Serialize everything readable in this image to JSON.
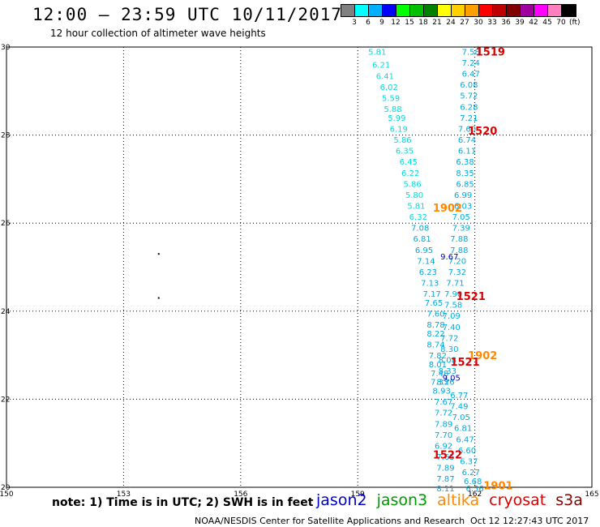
{
  "title": "12:00 — 23:59 UTC 10/11/2017",
  "subtitle": "12 hour collection of altimeter wave heights",
  "legend": {
    "unit": "(ft)",
    "labels": [
      "3",
      "6",
      "9",
      "12",
      "15",
      "18",
      "21",
      "24",
      "27",
      "30",
      "33",
      "36",
      "39",
      "42",
      "45",
      "70"
    ],
    "colors": [
      "#808080",
      "#00ffff",
      "#00b0ff",
      "#0000ff",
      "#00ff00",
      "#00c000",
      "#008000",
      "#ffff00",
      "#ffd000",
      "#ffa000",
      "#ff0000",
      "#c00000",
      "#800000",
      "#a000a0",
      "#ff00ff",
      "#ff80c0",
      "#000000"
    ]
  },
  "note": "note:  1) Time is in UTC;  2) SWH is in feet",
  "satellites": [
    {
      "name": "jason2",
      "color": "#0000cc"
    },
    {
      "name": "jason3",
      "color": "#009900"
    },
    {
      "name": "altika",
      "color": "#ff8800"
    },
    {
      "name": "cryosat",
      "color": "#dd0000"
    },
    {
      "name": "s3a",
      "color": "#880000"
    }
  ],
  "footer": {
    "org": "NOAA/NESDIS Center for Satellite Applications and Research",
    "timestamp": "Oct 12 12:27:43 UTC 2017"
  },
  "map": {
    "lon_range": [
      150,
      165
    ],
    "lat_range": [
      20,
      30
    ],
    "lon_ticks": [
      "150",
      "153",
      "156",
      "159",
      "162",
      "165"
    ],
    "lat_ticks": [
      "20",
      "22",
      "24",
      "26",
      "28",
      "30"
    ],
    "lat_tick_labels_shown": [
      "20",
      "22",
      "24",
      "26",
      "28",
      "30"
    ],
    "islands": [
      {
        "lon": 153.9,
        "lat": 25.3
      },
      {
        "lon": 153.9,
        "lat": 24.3
      }
    ],
    "tracks": [
      {
        "color": "#00dddd",
        "points": [
          {
            "lon": 159.5,
            "lat": 29.9,
            "v": "5.81"
          },
          {
            "lon": 159.6,
            "lat": 29.6,
            "v": "6.21"
          },
          {
            "lon": 159.7,
            "lat": 29.35,
            "v": "6.41"
          },
          {
            "lon": 159.8,
            "lat": 29.1,
            "v": "6.02"
          },
          {
            "lon": 159.85,
            "lat": 28.85,
            "v": "5.59"
          },
          {
            "lon": 159.9,
            "lat": 28.6,
            "v": "5.88"
          },
          {
            "lon": 160.0,
            "lat": 28.4,
            "v": "5.99"
          },
          {
            "lon": 160.05,
            "lat": 28.15,
            "v": "6.19"
          },
          {
            "lon": 160.15,
            "lat": 27.9,
            "v": "5.86"
          },
          {
            "lon": 160.2,
            "lat": 27.65,
            "v": "6.35"
          },
          {
            "lon": 160.3,
            "lat": 27.4,
            "v": "6.45"
          },
          {
            "lon": 160.35,
            "lat": 27.15,
            "v": "6.22"
          },
          {
            "lon": 160.4,
            "lat": 26.9,
            "v": "5.86"
          },
          {
            "lon": 160.45,
            "lat": 26.65,
            "v": "5.80"
          },
          {
            "lon": 160.5,
            "lat": 26.4,
            "v": "5.81"
          },
          {
            "lon": 160.55,
            "lat": 26.15,
            "v": "6.32"
          }
        ]
      },
      {
        "color": "#00aadd",
        "points": [
          {
            "lon": 160.6,
            "lat": 25.9,
            "v": "7.08"
          },
          {
            "lon": 160.65,
            "lat": 25.65,
            "v": "6.81"
          },
          {
            "lon": 160.7,
            "lat": 25.4,
            "v": "6.95"
          },
          {
            "lon": 160.75,
            "lat": 25.15,
            "v": "7.14"
          },
          {
            "lon": 160.8,
            "lat": 24.9,
            "v": "6.23"
          },
          {
            "lon": 160.85,
            "lat": 24.65,
            "v": "7.13"
          },
          {
            "lon": 160.9,
            "lat": 24.4,
            "v": "7.17"
          },
          {
            "lon": 160.95,
            "lat": 24.2,
            "v": "7.65"
          },
          {
            "lon": 161.0,
            "lat": 23.95,
            "v": "7.60"
          },
          {
            "lon": 161.0,
            "lat": 23.7,
            "v": "8.78"
          },
          {
            "lon": 161.0,
            "lat": 23.5,
            "v": "8.22"
          },
          {
            "lon": 161.0,
            "lat": 23.25,
            "v": "8.74"
          },
          {
            "lon": 161.05,
            "lat": 23.0,
            "v": "7.82"
          },
          {
            "lon": 161.05,
            "lat": 22.8,
            "v": "8.01"
          },
          {
            "lon": 161.1,
            "lat": 22.6,
            "v": "7.48"
          },
          {
            "lon": 161.1,
            "lat": 22.4,
            "v": "7.33"
          },
          {
            "lon": 161.15,
            "lat": 22.2,
            "v": "8.93"
          },
          {
            "lon": 161.2,
            "lat": 21.95,
            "v": "7.67"
          },
          {
            "lon": 161.2,
            "lat": 21.7,
            "v": "7.72"
          },
          {
            "lon": 161.2,
            "lat": 21.45,
            "v": "7.89"
          },
          {
            "lon": 161.2,
            "lat": 21.2,
            "v": "7.70"
          },
          {
            "lon": 161.2,
            "lat": 20.95,
            "v": "6.92"
          },
          {
            "lon": 161.25,
            "lat": 20.7,
            "v": "7.65"
          },
          {
            "lon": 161.25,
            "lat": 20.45,
            "v": "7.89"
          },
          {
            "lon": 161.25,
            "lat": 20.2,
            "v": "7.87"
          },
          {
            "lon": 161.25,
            "lat": 19.98,
            "v": "8.11"
          }
        ]
      },
      {
        "color": "#00aadd",
        "points": [
          {
            "lon": 161.9,
            "lat": 29.9,
            "v": "7.58"
          },
          {
            "lon": 161.9,
            "lat": 29.65,
            "v": "7.24"
          },
          {
            "lon": 161.9,
            "lat": 29.4,
            "v": "6.47"
          },
          {
            "lon": 161.85,
            "lat": 29.15,
            "v": "6.08"
          },
          {
            "lon": 161.85,
            "lat": 28.9,
            "v": "5.72"
          },
          {
            "lon": 161.85,
            "lat": 28.65,
            "v": "6.28"
          },
          {
            "lon": 161.85,
            "lat": 28.4,
            "v": "7.21"
          },
          {
            "lon": 161.8,
            "lat": 28.15,
            "v": "7.60"
          },
          {
            "lon": 161.8,
            "lat": 27.9,
            "v": "6.74"
          },
          {
            "lon": 161.8,
            "lat": 27.65,
            "v": "6.11"
          },
          {
            "lon": 161.75,
            "lat": 27.4,
            "v": "6.38"
          },
          {
            "lon": 161.75,
            "lat": 27.15,
            "v": "8.35"
          },
          {
            "lon": 161.75,
            "lat": 26.9,
            "v": "6.85"
          },
          {
            "lon": 161.7,
            "lat": 26.65,
            "v": "6.99"
          },
          {
            "lon": 161.7,
            "lat": 26.4,
            "v": "6.03"
          },
          {
            "lon": 161.65,
            "lat": 26.15,
            "v": "7.05"
          },
          {
            "lon": 161.65,
            "lat": 25.9,
            "v": "7.39"
          },
          {
            "lon": 161.6,
            "lat": 25.65,
            "v": "7.88"
          },
          {
            "lon": 161.6,
            "lat": 25.4,
            "v": "7.88"
          },
          {
            "lon": 161.55,
            "lat": 25.15,
            "v": "7.20"
          },
          {
            "lon": 161.55,
            "lat": 24.9,
            "v": "7.32"
          },
          {
            "lon": 161.5,
            "lat": 24.65,
            "v": "7.71"
          },
          {
            "lon": 161.45,
            "lat": 24.4,
            "v": "7.90"
          },
          {
            "lon": 161.45,
            "lat": 24.15,
            "v": "7.58"
          },
          {
            "lon": 161.4,
            "lat": 23.9,
            "v": "7.09"
          },
          {
            "lon": 161.4,
            "lat": 23.65,
            "v": "7.40"
          },
          {
            "lon": 161.35,
            "lat": 23.4,
            "v": "7.72"
          },
          {
            "lon": 161.35,
            "lat": 23.15,
            "v": "8.30"
          },
          {
            "lon": 161.3,
            "lat": 22.9,
            "v": "8.08"
          },
          {
            "lon": 161.3,
            "lat": 22.65,
            "v": "8.33"
          },
          {
            "lon": 161.25,
            "lat": 22.4,
            "v": "8.26"
          },
          {
            "lon": 161.6,
            "lat": 22.1,
            "v": "6.77"
          },
          {
            "lon": 161.6,
            "lat": 21.85,
            "v": "7.49"
          },
          {
            "lon": 161.65,
            "lat": 21.6,
            "v": "7.05"
          },
          {
            "lon": 161.7,
            "lat": 21.35,
            "v": "6.81"
          },
          {
            "lon": 161.75,
            "lat": 21.1,
            "v": "6.47"
          },
          {
            "lon": 161.8,
            "lat": 20.85,
            "v": "6.60"
          },
          {
            "lon": 161.85,
            "lat": 20.6,
            "v": "6.37"
          },
          {
            "lon": 161.9,
            "lat": 20.35,
            "v": "6.27"
          },
          {
            "lon": 161.95,
            "lat": 20.15,
            "v": "6.68"
          },
          {
            "lon": 162.0,
            "lat": 19.98,
            "v": "6.56"
          }
        ]
      },
      {
        "color": "#0000aa",
        "points": [
          {
            "lon": 161.35,
            "lat": 25.25,
            "v": "9.67"
          },
          {
            "lon": 161.4,
            "lat": 22.5,
            "v": "9.05"
          }
        ]
      }
    ],
    "pass_labels": [
      {
        "text": "1519",
        "color": "#dd0000",
        "lon": 162.4,
        "lat": 29.9
      },
      {
        "text": "1520",
        "color": "#dd0000",
        "lon": 162.2,
        "lat": 28.1
      },
      {
        "text": "1902",
        "color": "#ff8800",
        "lon": 161.3,
        "lat": 26.35
      },
      {
        "text": "1521",
        "color": "#dd0000",
        "lon": 161.9,
        "lat": 24.35
      },
      {
        "text": "1902",
        "color": "#ff8800",
        "lon": 162.2,
        "lat": 23.0
      },
      {
        "text": "1521",
        "color": "#dd0000",
        "lon": 161.75,
        "lat": 22.85
      },
      {
        "text": "1522",
        "color": "#dd0000",
        "lon": 161.3,
        "lat": 20.75
      },
      {
        "text": "1901",
        "color": "#ff8800",
        "lon": 162.6,
        "lat": 20.05
      }
    ]
  }
}
